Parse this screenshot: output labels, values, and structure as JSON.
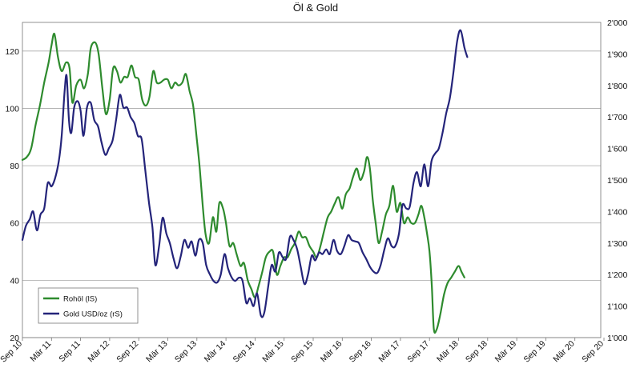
{
  "chart_data": {
    "type": "line",
    "title": "Öl & Gold",
    "x_tick_labels": [
      "Sep 10",
      "Mär 11",
      "Sep 11",
      "Mär 12",
      "Sep 12",
      "Mär 13",
      "Sep 13",
      "Mär 14",
      "Sep 14",
      "Mär 15",
      "Sep 15",
      "Mär 16",
      "Sep 16",
      "Mär 17",
      "Sep 17",
      "Mär 18",
      "Sep 18",
      "Mär 19",
      "Sep 19",
      "Mär 20",
      "Sep 20"
    ],
    "x_range": [
      0,
      20.3
    ],
    "y_left": {
      "min": 20,
      "max": 130,
      "ticks": [
        20,
        40,
        60,
        80,
        100,
        120
      ]
    },
    "y_right": {
      "min": 1000,
      "max": 2000,
      "ticks": [
        1000,
        1100,
        1200,
        1300,
        1400,
        1500,
        1600,
        1700,
        1800,
        1900,
        2000
      ],
      "tick_labels": [
        "1'000",
        "1'100",
        "1'200",
        "1'300",
        "1'400",
        "1'500",
        "1'600",
        "1'700",
        "1'800",
        "1'900",
        "2'000"
      ]
    },
    "grid": "horizontal",
    "legend_position": "bottom-left",
    "series": [
      {
        "name": "Rohöl (lS)",
        "axis": "left",
        "color": "#2e8b2e",
        "points": [
          [
            0.0,
            82
          ],
          [
            0.15,
            83
          ],
          [
            0.3,
            86
          ],
          [
            0.45,
            94
          ],
          [
            0.6,
            101
          ],
          [
            0.75,
            109
          ],
          [
            0.9,
            116
          ],
          [
            1.0,
            122
          ],
          [
            1.1,
            126
          ],
          [
            1.22,
            118
          ],
          [
            1.35,
            113
          ],
          [
            1.5,
            116
          ],
          [
            1.62,
            114
          ],
          [
            1.72,
            102
          ],
          [
            1.85,
            108
          ],
          [
            2.0,
            110
          ],
          [
            2.12,
            107
          ],
          [
            2.25,
            112
          ],
          [
            2.35,
            121
          ],
          [
            2.5,
            123
          ],
          [
            2.62,
            119
          ],
          [
            2.75,
            107
          ],
          [
            2.87,
            98
          ],
          [
            3.0,
            103
          ],
          [
            3.12,
            114
          ],
          [
            3.25,
            113
          ],
          [
            3.37,
            109
          ],
          [
            3.5,
            111
          ],
          [
            3.62,
            111
          ],
          [
            3.75,
            115
          ],
          [
            3.87,
            111
          ],
          [
            4.0,
            110
          ],
          [
            4.12,
            103
          ],
          [
            4.25,
            101
          ],
          [
            4.37,
            104
          ],
          [
            4.5,
            113
          ],
          [
            4.62,
            109
          ],
          [
            4.75,
            109
          ],
          [
            4.87,
            110
          ],
          [
            5.0,
            110
          ],
          [
            5.12,
            107
          ],
          [
            5.25,
            109
          ],
          [
            5.37,
            108
          ],
          [
            5.5,
            109
          ],
          [
            5.62,
            112
          ],
          [
            5.75,
            106
          ],
          [
            5.87,
            101
          ],
          [
            6.0,
            89
          ],
          [
            6.1,
            79
          ],
          [
            6.2,
            66
          ],
          [
            6.3,
            56
          ],
          [
            6.42,
            53
          ],
          [
            6.55,
            62
          ],
          [
            6.67,
            57
          ],
          [
            6.77,
            67
          ],
          [
            6.9,
            65
          ],
          [
            7.0,
            60
          ],
          [
            7.12,
            52
          ],
          [
            7.25,
            53
          ],
          [
            7.37,
            49
          ],
          [
            7.5,
            45
          ],
          [
            7.62,
            46
          ],
          [
            7.75,
            40
          ],
          [
            7.87,
            37
          ],
          [
            8.0,
            34
          ],
          [
            8.12,
            38
          ],
          [
            8.25,
            43
          ],
          [
            8.37,
            48
          ],
          [
            8.5,
            50
          ],
          [
            8.62,
            50
          ],
          [
            8.75,
            42
          ],
          [
            8.87,
            45
          ],
          [
            9.0,
            48
          ],
          [
            9.12,
            48
          ],
          [
            9.25,
            51
          ],
          [
            9.37,
            53
          ],
          [
            9.5,
            57
          ],
          [
            9.62,
            55
          ],
          [
            9.75,
            55
          ],
          [
            9.87,
            52
          ],
          [
            10.0,
            50
          ],
          [
            10.12,
            48
          ],
          [
            10.25,
            52
          ],
          [
            10.37,
            57
          ],
          [
            10.5,
            62
          ],
          [
            10.62,
            64
          ],
          [
            10.75,
            67
          ],
          [
            10.87,
            69
          ],
          [
            11.0,
            65
          ],
          [
            11.12,
            70
          ],
          [
            11.25,
            72
          ],
          [
            11.37,
            76
          ],
          [
            11.5,
            79
          ],
          [
            11.62,
            75
          ],
          [
            11.75,
            78
          ],
          [
            11.85,
            83
          ],
          [
            11.95,
            79
          ],
          [
            12.05,
            68
          ],
          [
            12.15,
            60
          ],
          [
            12.25,
            53
          ],
          [
            12.37,
            57
          ],
          [
            12.5,
            63
          ],
          [
            12.62,
            66
          ],
          [
            12.75,
            73
          ],
          [
            12.87,
            64
          ],
          [
            13.0,
            67
          ],
          [
            13.12,
            60
          ],
          [
            13.25,
            62
          ],
          [
            13.37,
            60
          ],
          [
            13.5,
            60
          ],
          [
            13.62,
            63
          ],
          [
            13.72,
            66
          ],
          [
            13.82,
            62
          ],
          [
            13.92,
            56
          ],
          [
            14.0,
            50
          ],
          [
            14.08,
            38
          ],
          [
            14.15,
            23
          ],
          [
            14.25,
            23
          ],
          [
            14.37,
            28
          ],
          [
            14.5,
            35
          ],
          [
            14.62,
            39
          ],
          [
            14.75,
            41
          ],
          [
            14.87,
            43
          ],
          [
            15.0,
            45
          ],
          [
            15.1,
            43
          ],
          [
            15.2,
            41
          ]
        ]
      },
      {
        "name": "Gold USD/oz (rS)",
        "axis": "right",
        "color": "#24247a",
        "points": [
          [
            0.0,
            1310
          ],
          [
            0.12,
            1355
          ],
          [
            0.25,
            1375
          ],
          [
            0.37,
            1400
          ],
          [
            0.5,
            1340
          ],
          [
            0.62,
            1390
          ],
          [
            0.75,
            1410
          ],
          [
            0.87,
            1490
          ],
          [
            1.0,
            1480
          ],
          [
            1.12,
            1505
          ],
          [
            1.25,
            1560
          ],
          [
            1.35,
            1640
          ],
          [
            1.45,
            1780
          ],
          [
            1.52,
            1830
          ],
          [
            1.6,
            1690
          ],
          [
            1.68,
            1650
          ],
          [
            1.78,
            1730
          ],
          [
            1.9,
            1750
          ],
          [
            2.0,
            1720
          ],
          [
            2.1,
            1640
          ],
          [
            2.22,
            1730
          ],
          [
            2.35,
            1745
          ],
          [
            2.47,
            1690
          ],
          [
            2.6,
            1670
          ],
          [
            2.72,
            1620
          ],
          [
            2.85,
            1580
          ],
          [
            2.97,
            1600
          ],
          [
            3.1,
            1625
          ],
          [
            3.22,
            1690
          ],
          [
            3.35,
            1770
          ],
          [
            3.47,
            1730
          ],
          [
            3.6,
            1730
          ],
          [
            3.72,
            1700
          ],
          [
            3.85,
            1680
          ],
          [
            3.97,
            1640
          ],
          [
            4.1,
            1630
          ],
          [
            4.22,
            1535
          ],
          [
            4.35,
            1430
          ],
          [
            4.47,
            1350
          ],
          [
            4.57,
            1230
          ],
          [
            4.7,
            1290
          ],
          [
            4.82,
            1380
          ],
          [
            4.95,
            1330
          ],
          [
            5.07,
            1300
          ],
          [
            5.2,
            1250
          ],
          [
            5.32,
            1220
          ],
          [
            5.45,
            1260
          ],
          [
            5.57,
            1310
          ],
          [
            5.7,
            1285
          ],
          [
            5.82,
            1305
          ],
          [
            5.95,
            1260
          ],
          [
            6.07,
            1310
          ],
          [
            6.2,
            1300
          ],
          [
            6.32,
            1230
          ],
          [
            6.45,
            1200
          ],
          [
            6.57,
            1180
          ],
          [
            6.7,
            1175
          ],
          [
            6.82,
            1200
          ],
          [
            6.95,
            1265
          ],
          [
            7.07,
            1220
          ],
          [
            7.2,
            1190
          ],
          [
            7.32,
            1180
          ],
          [
            7.45,
            1190
          ],
          [
            7.57,
            1180
          ],
          [
            7.7,
            1110
          ],
          [
            7.82,
            1125
          ],
          [
            7.95,
            1100
          ],
          [
            8.07,
            1140
          ],
          [
            8.2,
            1070
          ],
          [
            8.32,
            1080
          ],
          [
            8.45,
            1160
          ],
          [
            8.57,
            1230
          ],
          [
            8.7,
            1210
          ],
          [
            8.82,
            1270
          ],
          [
            8.95,
            1255
          ],
          [
            9.07,
            1250
          ],
          [
            9.2,
            1320
          ],
          [
            9.32,
            1310
          ],
          [
            9.45,
            1280
          ],
          [
            9.57,
            1225
          ],
          [
            9.7,
            1170
          ],
          [
            9.82,
            1200
          ],
          [
            9.95,
            1260
          ],
          [
            10.07,
            1245
          ],
          [
            10.2,
            1270
          ],
          [
            10.32,
            1265
          ],
          [
            10.45,
            1280
          ],
          [
            10.57,
            1265
          ],
          [
            10.7,
            1310
          ],
          [
            10.82,
            1275
          ],
          [
            10.95,
            1265
          ],
          [
            11.07,
            1290
          ],
          [
            11.2,
            1325
          ],
          [
            11.32,
            1310
          ],
          [
            11.45,
            1305
          ],
          [
            11.57,
            1300
          ],
          [
            11.7,
            1270
          ],
          [
            11.82,
            1250
          ],
          [
            11.95,
            1225
          ],
          [
            12.07,
            1210
          ],
          [
            12.2,
            1205
          ],
          [
            12.32,
            1230
          ],
          [
            12.45,
            1280
          ],
          [
            12.57,
            1315
          ],
          [
            12.7,
            1290
          ],
          [
            12.82,
            1290
          ],
          [
            12.95,
            1330
          ],
          [
            13.07,
            1420
          ],
          [
            13.2,
            1410
          ],
          [
            13.32,
            1415
          ],
          [
            13.45,
            1490
          ],
          [
            13.57,
            1525
          ],
          [
            13.7,
            1480
          ],
          [
            13.82,
            1550
          ],
          [
            13.95,
            1480
          ],
          [
            14.07,
            1560
          ],
          [
            14.2,
            1585
          ],
          [
            14.32,
            1600
          ],
          [
            14.45,
            1650
          ],
          [
            14.57,
            1710
          ],
          [
            14.7,
            1760
          ],
          [
            14.82,
            1840
          ],
          [
            14.95,
            1940
          ],
          [
            15.07,
            1975
          ],
          [
            15.2,
            1920
          ],
          [
            15.3,
            1890
          ]
        ]
      }
    ]
  }
}
